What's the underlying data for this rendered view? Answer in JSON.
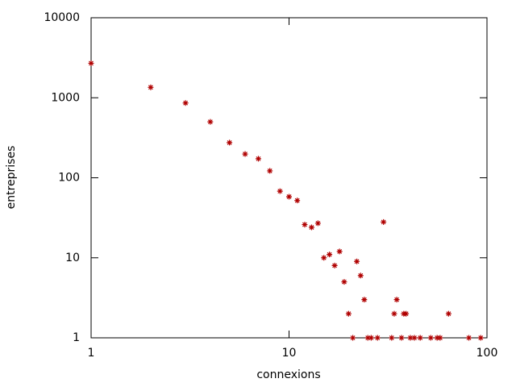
{
  "chart_data": {
    "type": "scatter",
    "x_label": "connexions",
    "y_label": "entreprises",
    "x_log": true,
    "y_log": true,
    "color": "#b00000",
    "x": [
      1,
      2,
      3,
      4,
      5,
      6,
      7,
      8,
      9,
      10,
      11,
      12,
      13,
      14,
      15,
      16,
      17,
      18,
      19,
      20,
      21,
      22,
      23,
      24,
      25,
      26,
      28,
      30,
      33,
      34,
      35,
      37,
      38,
      39,
      41,
      43,
      46,
      52,
      56,
      58,
      64,
      81,
      93
    ],
    "y": [
      2700,
      1350,
      860,
      500,
      275,
      198,
      173,
      122,
      68,
      58,
      52,
      26,
      24,
      27,
      10,
      11,
      8,
      12,
      5,
      2,
      1,
      9,
      6,
      3,
      1,
      1,
      1,
      28,
      1,
      2,
      3,
      1,
      2,
      2,
      1,
      1,
      1,
      1,
      1,
      1,
      2,
      1,
      1
    ],
    "xlim": [
      1,
      100
    ],
    "ylim": [
      1,
      10000
    ],
    "xticks": [
      1,
      10,
      100
    ],
    "yticks": [
      1,
      10,
      100,
      1000,
      10000
    ]
  }
}
